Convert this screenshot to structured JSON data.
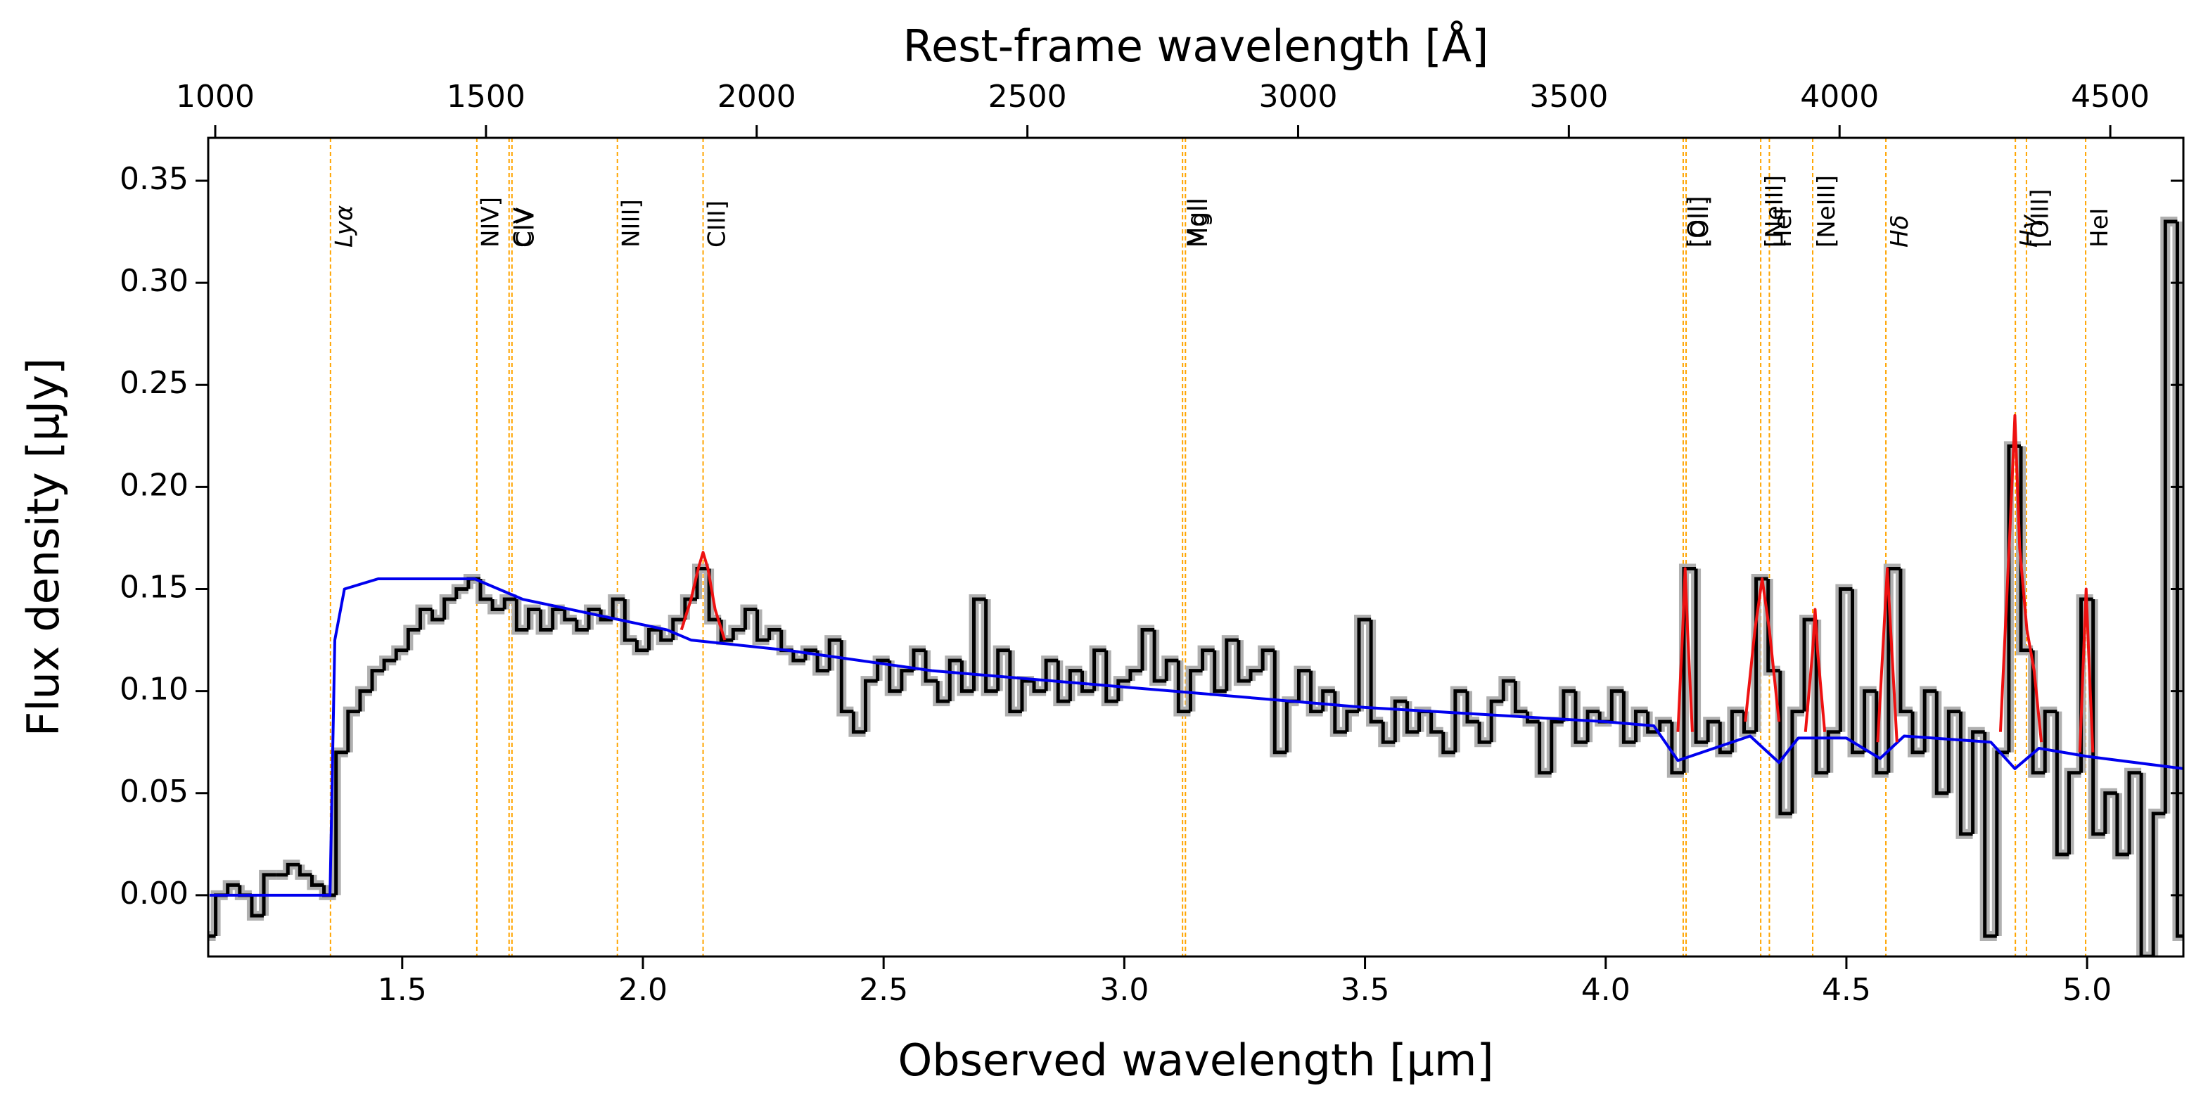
{
  "chart_data": {
    "type": "line",
    "xlabel": "Observed wavelength [μm]",
    "ylabel": "Flux density [μJy]",
    "x2label": "Rest-frame wavelength [Å]",
    "xlim": [
      1.097,
      5.2
    ],
    "xticks": [
      {
        "value": 1.5,
        "label": "1.5"
      },
      {
        "value": 2.0,
        "label": "2.0"
      },
      {
        "value": 2.5,
        "label": "2.5"
      },
      {
        "value": 3.0,
        "label": "3.0"
      },
      {
        "value": 3.5,
        "label": "3.5"
      },
      {
        "value": 4.0,
        "label": "4.0"
      },
      {
        "value": 4.5,
        "label": "4.5"
      },
      {
        "value": 5.0,
        "label": "5.0"
      }
    ],
    "x2lim": [
      987,
      4635
    ],
    "x2ticks": [
      1000,
      1500,
      2000,
      2500,
      3000,
      3500,
      4000,
      4500
    ],
    "ylim": [
      -0.03,
      0.371
    ],
    "yticks": [
      {
        "value": 0.0,
        "label": "0.00"
      },
      {
        "value": 0.05,
        "label": "0.05"
      },
      {
        "value": 0.1,
        "label": "0.10"
      },
      {
        "value": 0.15,
        "label": "0.15"
      },
      {
        "value": 0.2,
        "label": "0.20"
      },
      {
        "value": 0.25,
        "label": "0.25"
      },
      {
        "value": 0.3,
        "label": "0.30"
      },
      {
        "value": 0.35,
        "label": "0.35"
      }
    ],
    "series": [
      {
        "color": "#000000",
        "band_color": "#b0b0b0",
        "style": "step",
        "x": [
          1.1,
          1.125,
          1.15,
          1.175,
          1.2,
          1.225,
          1.25,
          1.275,
          1.3,
          1.325,
          1.35,
          1.375,
          1.4,
          1.425,
          1.45,
          1.475,
          1.5,
          1.525,
          1.55,
          1.575,
          1.6,
          1.625,
          1.65,
          1.675,
          1.7,
          1.725,
          1.75,
          1.775,
          1.8,
          1.825,
          1.85,
          1.875,
          1.9,
          1.925,
          1.95,
          1.975,
          2.0,
          2.025,
          2.05,
          2.075,
          2.1,
          2.125,
          2.15,
          2.175,
          2.2,
          2.225,
          2.25,
          2.275,
          2.3,
          2.325,
          2.35,
          2.375,
          2.4,
          2.425,
          2.45,
          2.475,
          2.5,
          2.525,
          2.55,
          2.575,
          2.6,
          2.625,
          2.65,
          2.675,
          2.7,
          2.725,
          2.75,
          2.775,
          2.8,
          2.825,
          2.85,
          2.875,
          2.9,
          2.925,
          2.95,
          2.975,
          3.0,
          3.025,
          3.05,
          3.075,
          3.1,
          3.125,
          3.15,
          3.175,
          3.2,
          3.225,
          3.25,
          3.275,
          3.3,
          3.325,
          3.35,
          3.375,
          3.4,
          3.425,
          3.45,
          3.475,
          3.5,
          3.525,
          3.55,
          3.575,
          3.6,
          3.625,
          3.65,
          3.675,
          3.7,
          3.725,
          3.75,
          3.775,
          3.8,
          3.825,
          3.85,
          3.875,
          3.9,
          3.925,
          3.95,
          3.975,
          4.0,
          4.025,
          4.05,
          4.075,
          4.1,
          4.125,
          4.15,
          4.175,
          4.2,
          4.225,
          4.25,
          4.275,
          4.3,
          4.325,
          4.35,
          4.375,
          4.4,
          4.425,
          4.45,
          4.475,
          4.5,
          4.525,
          4.55,
          4.575,
          4.6,
          4.625,
          4.65,
          4.675,
          4.7,
          4.725,
          4.75,
          4.775,
          4.8,
          4.825,
          4.85,
          4.875,
          4.9,
          4.925,
          4.95,
          4.975,
          5.0,
          5.025,
          5.05,
          5.075,
          5.1,
          5.125,
          5.15,
          5.175,
          5.2
        ],
        "values": [
          -0.02,
          0.0,
          0.005,
          0.0,
          -0.01,
          0.01,
          0.01,
          0.015,
          0.01,
          0.005,
          0.0,
          0.07,
          0.09,
          0.1,
          0.11,
          0.115,
          0.12,
          0.13,
          0.14,
          0.135,
          0.145,
          0.15,
          0.155,
          0.145,
          0.14,
          0.145,
          0.13,
          0.14,
          0.13,
          0.14,
          0.135,
          0.13,
          0.14,
          0.135,
          0.145,
          0.125,
          0.12,
          0.13,
          0.125,
          0.135,
          0.145,
          0.16,
          0.135,
          0.125,
          0.13,
          0.14,
          0.125,
          0.13,
          0.12,
          0.115,
          0.12,
          0.11,
          0.125,
          0.09,
          0.08,
          0.105,
          0.115,
          0.1,
          0.11,
          0.12,
          0.105,
          0.095,
          0.115,
          0.1,
          0.145,
          0.1,
          0.12,
          0.09,
          0.105,
          0.1,
          0.115,
          0.095,
          0.11,
          0.1,
          0.12,
          0.095,
          0.105,
          0.11,
          0.13,
          0.105,
          0.115,
          0.09,
          0.11,
          0.12,
          0.1,
          0.125,
          0.105,
          0.11,
          0.12,
          0.07,
          0.095,
          0.11,
          0.09,
          0.1,
          0.08,
          0.09,
          0.135,
          0.085,
          0.075,
          0.095,
          0.08,
          0.09,
          0.08,
          0.07,
          0.1,
          0.085,
          0.075,
          0.095,
          0.105,
          0.09,
          0.085,
          0.06,
          0.085,
          0.1,
          0.075,
          0.09,
          0.085,
          0.1,
          0.075,
          0.09,
          0.08,
          0.085,
          0.06,
          0.16,
          0.075,
          0.085,
          0.07,
          0.09,
          0.08,
          0.155,
          0.11,
          0.04,
          0.09,
          0.135,
          0.06,
          0.08,
          0.15,
          0.07,
          0.1,
          0.06,
          0.16,
          0.09,
          0.07,
          0.1,
          0.05,
          0.09,
          0.03,
          0.08,
          -0.02,
          0.07,
          0.22,
          0.12,
          0.06,
          0.09,
          0.02,
          0.06,
          0.145,
          0.03,
          0.05,
          0.02,
          0.06,
          -0.03,
          0.04,
          0.33,
          -0.02
        ]
      },
      {
        "color": "#0000ee",
        "style": "line",
        "x": [
          1.1,
          1.35,
          1.36,
          1.38,
          1.45,
          1.55,
          1.65,
          1.75,
          1.85,
          1.95,
          2.05,
          2.1,
          2.3,
          2.6,
          3.0,
          3.5,
          4.0,
          4.1,
          4.15,
          4.2,
          4.3,
          4.36,
          4.4,
          4.5,
          4.57,
          4.62,
          4.8,
          4.85,
          4.9,
          5.0,
          5.2
        ],
        "values": [
          0.0,
          0.0,
          0.125,
          0.15,
          0.155,
          0.155,
          0.155,
          0.145,
          0.14,
          0.135,
          0.13,
          0.125,
          0.12,
          0.11,
          0.102,
          0.092,
          0.085,
          0.083,
          0.066,
          0.07,
          0.078,
          0.065,
          0.077,
          0.077,
          0.067,
          0.078,
          0.075,
          0.062,
          0.072,
          0.068,
          0.062
        ]
      },
      {
        "color": "#ee1111",
        "style": "line",
        "x": [
          2.08,
          2.1,
          2.115,
          2.125,
          2.135,
          2.15,
          2.17,
          null,
          4.15,
          4.16,
          4.165,
          4.17,
          4.18,
          null,
          4.29,
          4.31,
          4.325,
          4.34,
          4.36,
          null,
          4.415,
          4.43,
          4.435,
          4.44,
          4.455,
          null,
          4.565,
          4.578,
          4.585,
          4.592,
          4.605,
          null,
          4.82,
          4.84,
          4.85,
          4.86,
          4.875,
          4.89,
          4.905,
          null,
          4.985,
          4.993,
          4.998,
          5.003,
          5.012
        ],
        "values": [
          0.13,
          0.145,
          0.16,
          0.168,
          0.16,
          0.14,
          0.125,
          null,
          0.08,
          0.13,
          0.16,
          0.13,
          0.08,
          null,
          0.085,
          0.13,
          0.155,
          0.13,
          0.085,
          null,
          0.08,
          0.12,
          0.14,
          0.12,
          0.08,
          null,
          0.075,
          0.13,
          0.16,
          0.13,
          0.075,
          null,
          0.08,
          0.18,
          0.235,
          0.17,
          0.13,
          0.11,
          0.075,
          null,
          0.07,
          0.12,
          0.15,
          0.12,
          0.07
        ]
      }
    ],
    "line_color": "#ffa500",
    "line_label_color": "#0000ff",
    "lines": [
      {
        "label": "Lyα",
        "x": 1.351,
        "italic": true
      },
      {
        "label": "NIV]",
        "x": 1.655
      },
      {
        "label": "CIV",
        "x": 1.722
      },
      {
        "label": "CIV",
        "x": 1.728
      },
      {
        "label": "NIII]",
        "x": 1.947
      },
      {
        "label": "CIII]",
        "x": 2.125
      },
      {
        "label": "MgII",
        "x": 3.121
      },
      {
        "label": "MgII",
        "x": 3.127
      },
      {
        "label": "[OII]",
        "x": 4.161
      },
      {
        "label": "[OII]",
        "x": 4.167
      },
      {
        "label": "[NeIII]",
        "x": 4.322
      },
      {
        "label": "HeI",
        "x": 4.34
      },
      {
        "label": "[NeIII]",
        "x": 4.43
      },
      {
        "label": "Hδ",
        "x": 4.582,
        "italic": true
      },
      {
        "label": "Hγ",
        "x": 4.851,
        "italic": true
      },
      {
        "label": "[OIII]",
        "x": 4.874
      },
      {
        "label": "HeI",
        "x": 4.997
      }
    ]
  }
}
